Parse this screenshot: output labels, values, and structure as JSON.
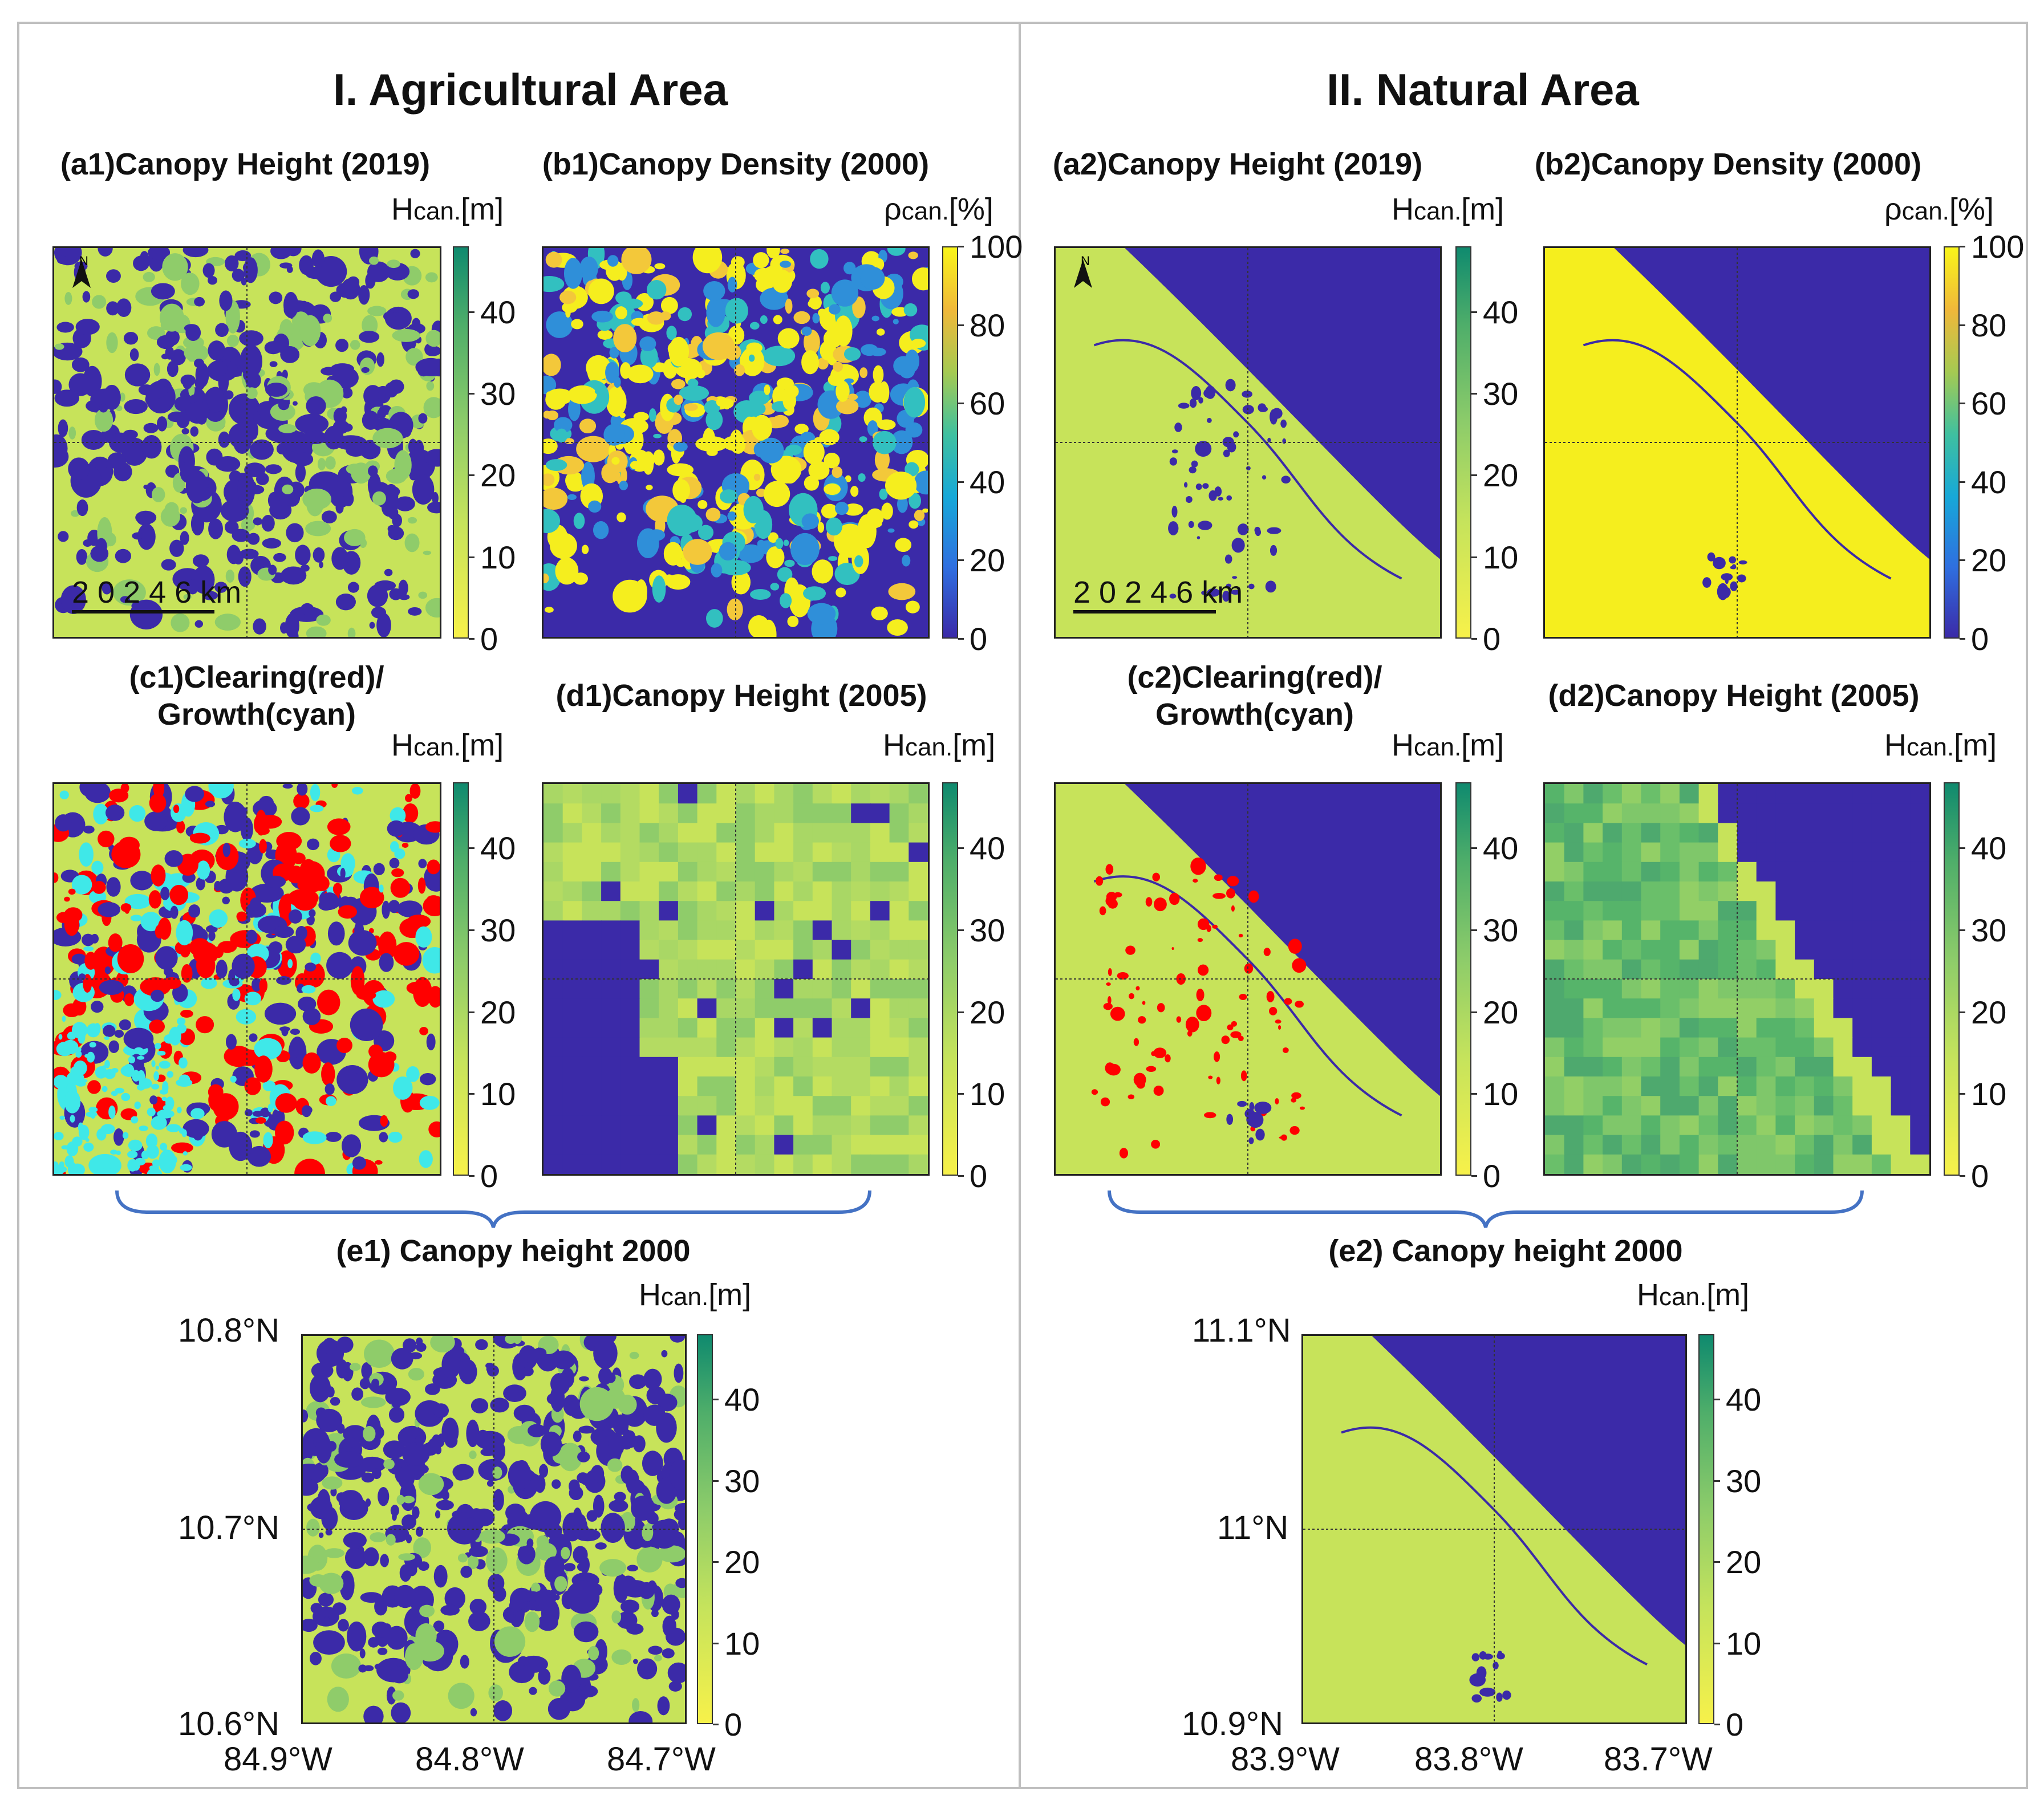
{
  "sections": {
    "agricultural": "I. Agricultural Area",
    "natural": "II. Natural Area"
  },
  "panels": {
    "a1": "(a1)Canopy Height (2019)",
    "b1": "(b1)Canopy Density (2000)",
    "c1": "(c1)Clearing(red)/\nGrowth(cyan)",
    "d1": "(d1)Canopy Height (2005)",
    "e1": "(e1) Canopy height 2000",
    "a2": "(a2)Canopy Height (2019)",
    "b2": "(b2)Canopy Density (2000)",
    "c2": "(c2)Clearing(red)/\nGrowth(cyan)",
    "d2": "(d2)Canopy Height (2005)",
    "e2": "(e2) Canopy height 2000"
  },
  "units": {
    "height_main": "H",
    "height_sub": "can.",
    "height_unit": "[m]",
    "density_main": "ρ",
    "density_sub": "can.",
    "density_unit": "[%]"
  },
  "scale_bar": "2 0 2 4 6 km",
  "north": "N",
  "colors": {
    "low": "#3b2aa8",
    "mid": "#bfe05a",
    "high": "#4fae6a",
    "yellow": "#f5ee1e",
    "clearing": "#ff0000",
    "growth": "#3fe8e8",
    "frame": "#bfbfbf",
    "brace": "#4472c4"
  },
  "chart_data": [
    {
      "id": "a1",
      "type": "heatmap",
      "title": "(a1)Canopy Height (2019)",
      "colorbar_label": "Hcan.[m]",
      "colorbar_ticks": [
        0,
        10,
        20,
        30,
        40
      ],
      "clim": [
        0,
        48
      ],
      "colormap": "parula-reversed"
    },
    {
      "id": "b1",
      "type": "heatmap",
      "title": "(b1)Canopy Density (2000)",
      "colorbar_label": "ρcan.[%]",
      "colorbar_ticks": [
        0,
        20,
        40,
        60,
        80,
        100
      ],
      "clim": [
        0,
        100
      ],
      "colormap": "parula"
    },
    {
      "id": "c1",
      "type": "heatmap",
      "title": "(c1)Clearing(red)/ Growth(cyan)",
      "colorbar_label": "Hcan.[m]",
      "colorbar_ticks": [
        0,
        10,
        20,
        30,
        40
      ],
      "clim": [
        0,
        48
      ]
    },
    {
      "id": "d1",
      "type": "heatmap",
      "title": "(d1)Canopy Height (2005)",
      "colorbar_label": "Hcan.[m]",
      "colorbar_ticks": [
        0,
        10,
        20,
        30,
        40
      ],
      "clim": [
        0,
        48
      ]
    },
    {
      "id": "e1",
      "type": "heatmap",
      "title": "(e1) Canopy height 2000",
      "colorbar_label": "Hcan.[m]",
      "colorbar_ticks": [
        0,
        10,
        20,
        30,
        40
      ],
      "clim": [
        0,
        48
      ],
      "lat_ticks": [
        "10.8°N",
        "10.7°N",
        "10.6°N"
      ],
      "lon_ticks": [
        "84.9°W",
        "84.8°W",
        "84.7°W"
      ]
    },
    {
      "id": "a2",
      "type": "heatmap",
      "title": "(a2)Canopy Height (2019)",
      "colorbar_label": "Hcan.[m]",
      "colorbar_ticks": [
        0,
        10,
        20,
        30,
        40
      ],
      "clim": [
        0,
        48
      ]
    },
    {
      "id": "b2",
      "type": "heatmap",
      "title": "(b2)Canopy Density (2000)",
      "colorbar_label": "ρcan.[%]",
      "colorbar_ticks": [
        0,
        20,
        40,
        60,
        80,
        100
      ],
      "clim": [
        0,
        100
      ]
    },
    {
      "id": "c2",
      "type": "heatmap",
      "title": "(c2)Clearing(red)/ Growth(cyan)",
      "colorbar_label": "Hcan.[m]",
      "colorbar_ticks": [
        0,
        10,
        20,
        30,
        40
      ],
      "clim": [
        0,
        48
      ]
    },
    {
      "id": "d2",
      "type": "heatmap",
      "title": "(d2)Canopy Height (2005)",
      "colorbar_label": "Hcan.[m]",
      "colorbar_ticks": [
        0,
        10,
        20,
        30,
        40
      ],
      "clim": [
        0,
        48
      ]
    },
    {
      "id": "e2",
      "type": "heatmap",
      "title": "(e2) Canopy height 2000",
      "colorbar_label": "Hcan.[m]",
      "colorbar_ticks": [
        0,
        10,
        20,
        30,
        40
      ],
      "clim": [
        0,
        48
      ],
      "lat_ticks": [
        "11.1°N",
        "11°N",
        "10.9°N"
      ],
      "lon_ticks": [
        "83.9°W",
        "83.8°W",
        "83.7°W"
      ]
    }
  ]
}
